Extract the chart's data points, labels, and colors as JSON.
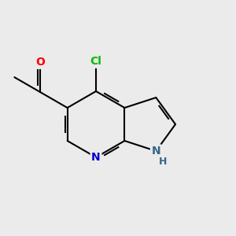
{
  "bg_color": "#ebebeb",
  "bond_color": "#000000",
  "bond_width": 1.5,
  "atom_colors": {
    "O": "#ff0000",
    "N": "#0000cc",
    "Cl": "#00bb00",
    "NH": "#336688",
    "H": "#336688"
  },
  "font_size_atom": 10,
  "figsize": [
    3.0,
    3.0
  ],
  "dpi": 100,
  "xlim": [
    0.0,
    3.0
  ],
  "ylim": [
    0.0,
    3.0
  ]
}
